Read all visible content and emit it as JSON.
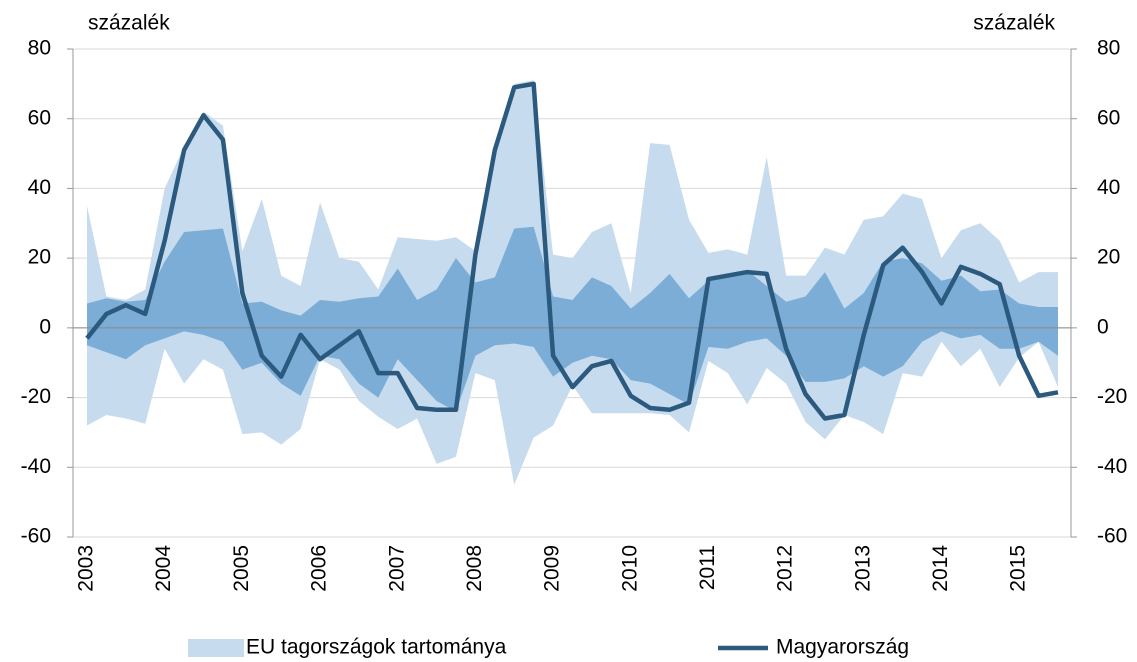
{
  "chart_data": {
    "type": "line",
    "y_label": "százalék",
    "y2_label": "százalék",
    "categories": [
      "2003",
      null,
      null,
      null,
      "2004",
      null,
      null,
      null,
      "2005",
      null,
      null,
      null,
      "2006",
      null,
      null,
      null,
      "2007",
      null,
      null,
      null,
      "2008",
      null,
      null,
      null,
      "2009",
      null,
      null,
      null,
      "2010",
      null,
      null,
      null,
      "2011",
      null,
      null,
      null,
      "2012",
      null,
      null,
      null,
      "2013",
      null,
      null,
      null,
      "2014",
      null,
      null,
      null,
      "2015",
      null,
      null
    ],
    "ylim": [
      -60,
      80
    ],
    "yticks": [
      -60,
      -40,
      -20,
      0,
      20,
      40,
      60,
      80
    ],
    "y2lim": [
      -60,
      80
    ],
    "y2ticks": [
      -60,
      -40,
      -20,
      0,
      20,
      40,
      60,
      80
    ],
    "grid": true,
    "legend": "bottom",
    "series": [
      {
        "name": "EU tagországok tartománya",
        "color": "#c6dbee",
        "high": [
          35,
          9,
          8,
          11,
          40,
          52,
          62,
          58,
          22,
          37,
          15,
          12,
          36,
          20,
          19,
          11,
          26,
          25.5,
          25,
          26,
          22,
          52,
          70,
          71,
          21,
          20,
          27.5,
          30,
          10,
          53,
          52.5,
          31,
          21.5,
          22.5,
          21,
          49,
          15,
          15,
          23,
          21,
          31,
          32,
          38.5,
          37,
          20,
          28,
          30,
          25,
          13,
          16,
          16
        ],
        "low": [
          -28,
          -25,
          -26,
          -27.5,
          -6,
          -16,
          -9,
          -12,
          -30.5,
          -30,
          -33.5,
          -29,
          -9,
          -12,
          -21,
          -25.5,
          -29,
          -26,
          -39,
          -37,
          -13,
          -15,
          -45,
          -31.5,
          -28,
          -16.5,
          -24.5,
          -24.5,
          -24.5,
          -24.5,
          -25,
          -30,
          -9.5,
          -13,
          -22,
          -11.5,
          -16,
          -27,
          -32,
          -25,
          -27,
          -30.5,
          -13,
          -14,
          -4,
          -11,
          -6,
          -17,
          -8.5,
          -4,
          -17
        ]
      },
      {
        "color": "#7badd6",
        "high": [
          7,
          8.5,
          7.5,
          8,
          19,
          27.5,
          28,
          28.5,
          7,
          7.5,
          5,
          3.5,
          8,
          7.5,
          8.5,
          9,
          17,
          8,
          11,
          20,
          13,
          14.5,
          28.5,
          29,
          9,
          8,
          14.5,
          12,
          5.5,
          10,
          15.5,
          8.5,
          13.5,
          15,
          16.5,
          12,
          7.5,
          9,
          16,
          5.5,
          10,
          19,
          20,
          18.5,
          13.5,
          15,
          10.5,
          11,
          7,
          6,
          6
        ],
        "low": [
          -5,
          -7,
          -9,
          -5,
          -3,
          -1,
          -2,
          -4,
          -12,
          -10,
          -16,
          -19.5,
          -8,
          -9,
          -16,
          -20,
          -9,
          -15,
          -21,
          -24,
          -8,
          -5,
          -4.5,
          -5.5,
          -14,
          -10,
          -8,
          -9,
          -15,
          -16,
          -19,
          -22,
          -5.5,
          -6,
          -4,
          -3,
          -8,
          -15.5,
          -15.5,
          -14.5,
          -11,
          -14,
          -11,
          -4,
          -1,
          -3,
          -2,
          -6,
          -6,
          -4,
          -8
        ]
      },
      {
        "name": "Magyarország",
        "color": "#2b5a7e",
        "values": [
          -3,
          4,
          6.5,
          4,
          25,
          51,
          61,
          54,
          10,
          -8,
          -14,
          -2,
          -9,
          -5,
          -1,
          -13,
          -13,
          -23,
          -23.5,
          -23.5,
          21,
          51,
          69,
          70,
          -8,
          -17,
          -11,
          -9.5,
          -19.5,
          -23,
          -23.5,
          -21.5,
          14,
          15,
          16,
          15.5,
          -6,
          -19,
          -26,
          -25,
          -2,
          18,
          23,
          16,
          7,
          17.5,
          15.5,
          12.5,
          -8,
          -19.5,
          -18.5
        ]
      }
    ]
  }
}
